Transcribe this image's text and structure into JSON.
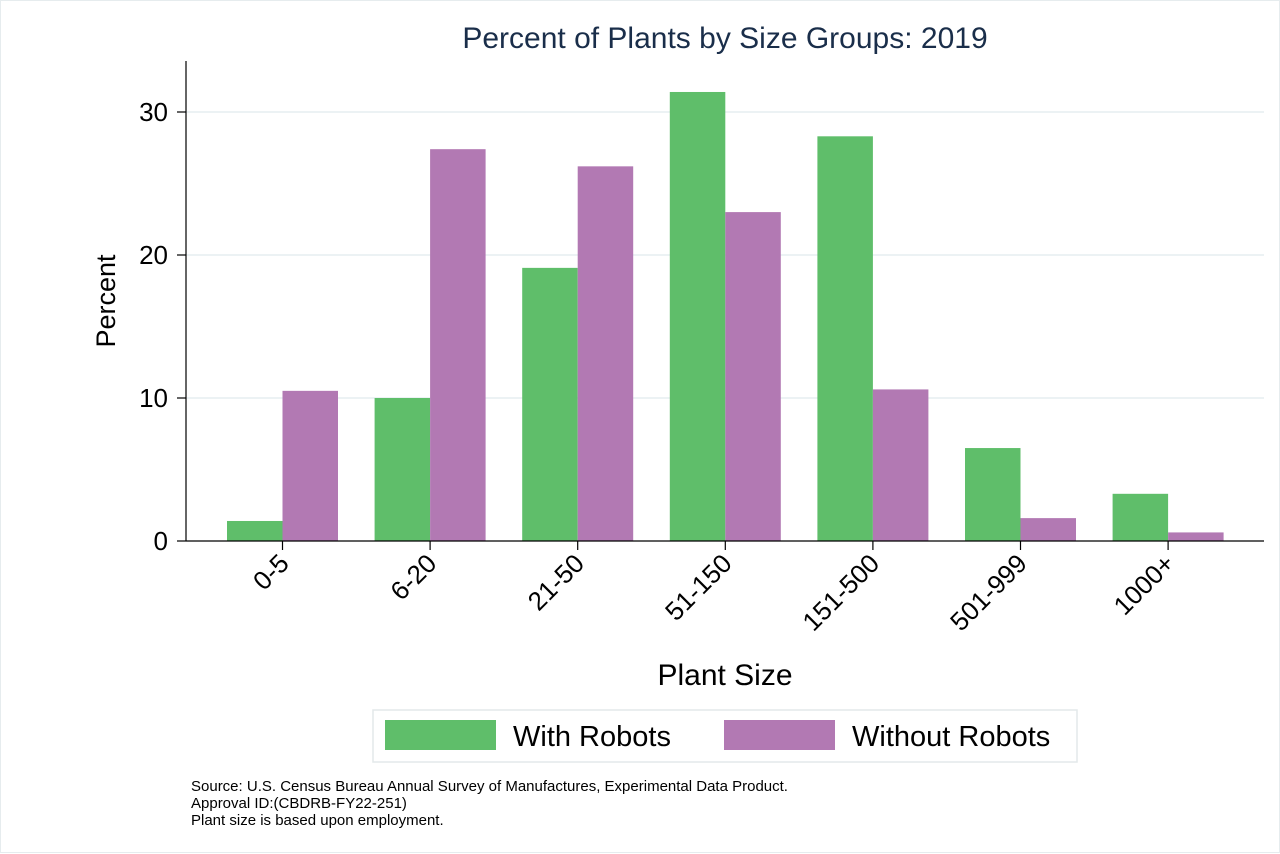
{
  "chart_data": {
    "type": "bar",
    "title": "Percent of Plants by Size Groups: 2019",
    "xlabel": "Plant Size",
    "ylabel": "Percent",
    "ylim": [
      0,
      33.5
    ],
    "yticks": [
      "0",
      "10",
      "20",
      "30"
    ],
    "grid": true,
    "legend_position": "bottom",
    "categories": [
      "0-5",
      "6-20",
      "21-50",
      "51-150",
      "151-500",
      "501-999",
      "1000+"
    ],
    "series": [
      {
        "name": "With Robots",
        "color": "#5fbe6a",
        "values": [
          1.4,
          10.0,
          19.1,
          31.4,
          28.3,
          6.5,
          3.3
        ]
      },
      {
        "name": "Without Robots",
        "color": "#b279b3",
        "values": [
          10.5,
          27.4,
          26.2,
          23.0,
          10.6,
          1.6,
          0.6
        ]
      }
    ]
  },
  "notes": {
    "line1": "Source: U.S. Census Bureau Annual Survey of Manufactures, Experimental Data Product.",
    "line2": "Approval ID:(CBDRB-FY22-251)",
    "line3": "Plant size is based upon employment."
  }
}
